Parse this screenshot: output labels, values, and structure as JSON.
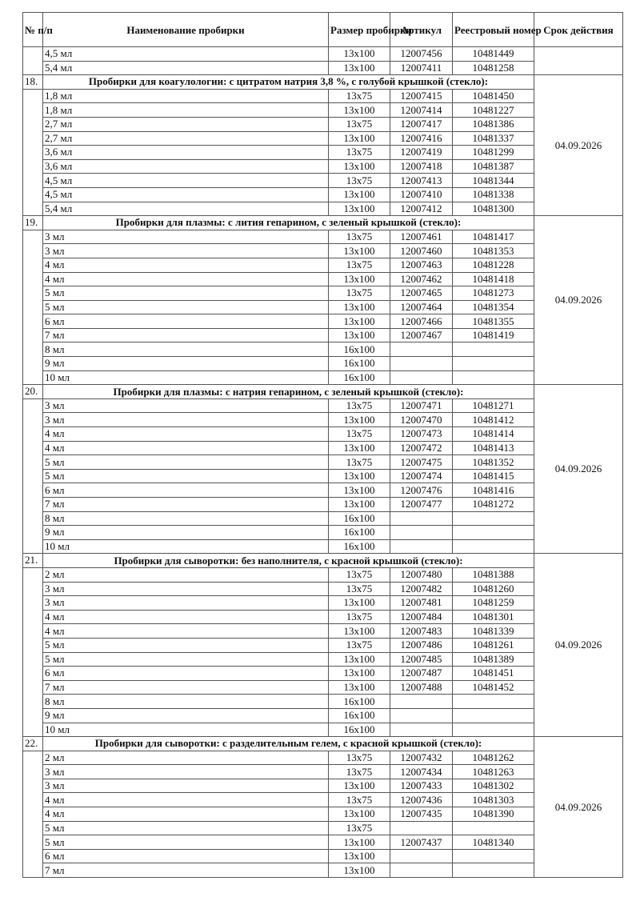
{
  "header": {
    "num": "№ п/п",
    "name": "Наименование пробирки",
    "size": "Размер пробирки",
    "article": "Артикул",
    "registry": "Реестровый номер",
    "expiry": "Срок действия"
  },
  "groups": [
    {
      "num": "",
      "title": "",
      "expiry": "",
      "items": [
        {
          "name": "4,5 мл",
          "size": "13x100",
          "article": "12007456",
          "registry": "10481449"
        },
        {
          "name": "5,4 мл",
          "size": "13x100",
          "article": "12007411",
          "registry": "10481258"
        }
      ]
    },
    {
      "num": "18.",
      "title": "Пробирки для коагулологии: с цитратом натрия 3,8 %, с голубой крышкой (стекло):",
      "expiry": "04.09.2026",
      "items": [
        {
          "name": "1,8 мл",
          "size": "13x75",
          "article": "12007415",
          "registry": "10481450"
        },
        {
          "name": "1,8 мл",
          "size": "13x100",
          "article": "12007414",
          "registry": "10481227"
        },
        {
          "name": "2,7 мл",
          "size": "13x75",
          "article": "12007417",
          "registry": "10481386"
        },
        {
          "name": "2,7 мл",
          "size": "13x100",
          "article": "12007416",
          "registry": "10481337"
        },
        {
          "name": "3,6 мл",
          "size": "13x75",
          "article": "12007419",
          "registry": "10481299"
        },
        {
          "name": "3,6 мл",
          "size": "13x100",
          "article": "12007418",
          "registry": "10481387"
        },
        {
          "name": "4,5 мл",
          "size": "13x75",
          "article": "12007413",
          "registry": "10481344"
        },
        {
          "name": "4,5 мл",
          "size": "13x100",
          "article": "12007410",
          "registry": "10481338"
        },
        {
          "name": "5,4 мл",
          "size": "13x100",
          "article": "12007412",
          "registry": "10481300"
        }
      ]
    },
    {
      "num": "19.",
      "title": "Пробирки для плазмы: с лития гепарином, с зеленый крышкой (стекло):",
      "expiry": "04.09.2026",
      "items": [
        {
          "name": "3 мл",
          "size": "13x75",
          "article": "12007461",
          "registry": "10481417"
        },
        {
          "name": "3 мл",
          "size": "13x100",
          "article": "12007460",
          "registry": "10481353"
        },
        {
          "name": "4 мл",
          "size": "13x75",
          "article": "12007463",
          "registry": "10481228"
        },
        {
          "name": "4 мл",
          "size": "13x100",
          "article": "12007462",
          "registry": "10481418"
        },
        {
          "name": "5 мл",
          "size": "13x75",
          "article": "12007465",
          "registry": "10481273"
        },
        {
          "name": "5 мл",
          "size": "13x100",
          "article": "12007464",
          "registry": "10481354"
        },
        {
          "name": "6 мл",
          "size": "13x100",
          "article": "12007466",
          "registry": "10481355"
        },
        {
          "name": "7 мл",
          "size": "13x100",
          "article": "12007467",
          "registry": "10481419"
        },
        {
          "name": "8 мл",
          "size": "16x100",
          "article": "",
          "registry": ""
        },
        {
          "name": "9 мл",
          "size": "16x100",
          "article": "",
          "registry": ""
        },
        {
          "name": "10 мл",
          "size": "16x100",
          "article": "",
          "registry": ""
        }
      ]
    },
    {
      "num": "20.",
      "title": "Пробирки для плазмы: с натрия гепарином, с зеленый крышкой (стекло):",
      "expiry": "04.09.2026",
      "items": [
        {
          "name": "3 мл",
          "size": "13x75",
          "article": "12007471",
          "registry": "10481271"
        },
        {
          "name": "3 мл",
          "size": "13x100",
          "article": "12007470",
          "registry": "10481412"
        },
        {
          "name": "4 мл",
          "size": "13x75",
          "article": "12007473",
          "registry": "10481414"
        },
        {
          "name": "4 мл",
          "size": "13x100",
          "article": "12007472",
          "registry": "10481413"
        },
        {
          "name": "5 мл",
          "size": "13x75",
          "article": "12007475",
          "registry": "10481352"
        },
        {
          "name": "5 мл",
          "size": "13x100",
          "article": "12007474",
          "registry": "10481415"
        },
        {
          "name": "6 мл",
          "size": "13x100",
          "article": "12007476",
          "registry": "10481416"
        },
        {
          "name": "7 мл",
          "size": "13x100",
          "article": "12007477",
          "registry": "10481272"
        },
        {
          "name": "8 мл",
          "size": "16x100",
          "article": "",
          "registry": ""
        },
        {
          "name": "9 мл",
          "size": "16x100",
          "article": "",
          "registry": ""
        },
        {
          "name": "10 мл",
          "size": "16x100",
          "article": "",
          "registry": ""
        }
      ]
    },
    {
      "num": "21.",
      "title": "Пробирки для сыворотки: без наполнителя, с красной крышкой (стекло):",
      "expiry": "04.09.2026",
      "items": [
        {
          "name": "2 мл",
          "size": "13x75",
          "article": "12007480",
          "registry": "10481388"
        },
        {
          "name": "3 мл",
          "size": "13x75",
          "article": "12007482",
          "registry": "10481260"
        },
        {
          "name": "3 мл",
          "size": "13x100",
          "article": "12007481",
          "registry": "10481259"
        },
        {
          "name": "4 мл",
          "size": "13x75",
          "article": "12007484",
          "registry": "10481301"
        },
        {
          "name": "4 мл",
          "size": "13x100",
          "article": "12007483",
          "registry": "10481339"
        },
        {
          "name": "5 мл",
          "size": "13x75",
          "article": "12007486",
          "registry": "10481261"
        },
        {
          "name": "5 мл",
          "size": "13x100",
          "article": "12007485",
          "registry": "10481389"
        },
        {
          "name": "6 мл",
          "size": "13x100",
          "article": "12007487",
          "registry": "10481451"
        },
        {
          "name": "7 мл",
          "size": "13x100",
          "article": "12007488",
          "registry": "10481452"
        },
        {
          "name": "8 мл",
          "size": "16x100",
          "article": "",
          "registry": ""
        },
        {
          "name": "9 мл",
          "size": "16x100",
          "article": "",
          "registry": ""
        },
        {
          "name": "10 мл",
          "size": "16x100",
          "article": "",
          "registry": ""
        }
      ]
    },
    {
      "num": "22.",
      "title": "Пробирки для сыворотки: с разделительным гелем, с красной крышкой (стекло):",
      "expiry": "04.09.2026",
      "items": [
        {
          "name": "2 мл",
          "size": "13x75",
          "article": "12007432",
          "registry": "10481262"
        },
        {
          "name": "3 мл",
          "size": "13x75",
          "article": "12007434",
          "registry": "10481263"
        },
        {
          "name": "3 мл",
          "size": "13x100",
          "article": "12007433",
          "registry": "10481302"
        },
        {
          "name": "4 мл",
          "size": "13x75",
          "article": "12007436",
          "registry": "10481303"
        },
        {
          "name": "4 мл",
          "size": "13x100",
          "article": "12007435",
          "registry": "10481390"
        },
        {
          "name": "5 мл",
          "size": "13x75",
          "article": "",
          "registry": ""
        },
        {
          "name": "5 мл",
          "size": "13x100",
          "article": "12007437",
          "registry": "10481340"
        },
        {
          "name": "6 мл",
          "size": "13x100",
          "article": "",
          "registry": ""
        },
        {
          "name": "7 мл",
          "size": "13x100",
          "article": "",
          "registry": ""
        }
      ]
    }
  ]
}
